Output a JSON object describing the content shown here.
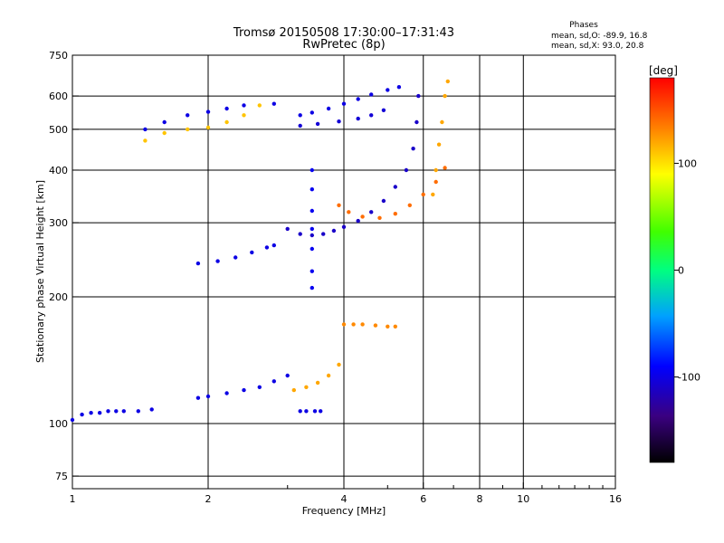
{
  "chart_data": {
    "type": "scatter",
    "title": "Tromsø 20150508 17:30:00–17:31:43",
    "subtitle": "RwPretec (8p)",
    "xlabel": "Frequency [MHz]",
    "ylabel": "Stationary phase Virtual Height [km]",
    "x_scale": "log",
    "y_scale": "log",
    "xlim": [
      1,
      16
    ],
    "ylim": [
      70,
      750
    ],
    "x_ticks": [
      "1",
      "2",
      "4",
      "6",
      "8",
      "10",
      "16"
    ],
    "x_tick_values": [
      1,
      2,
      4,
      6,
      8,
      10,
      16
    ],
    "x_minor_ticks": [
      3,
      5,
      7,
      9,
      11,
      12,
      13,
      14,
      15
    ],
    "y_ticks": [
      "75",
      "100",
      "200",
      "300",
      "400",
      "500",
      "600",
      "750"
    ],
    "y_tick_values": [
      75,
      100,
      200,
      300,
      400,
      500,
      600,
      750
    ],
    "grid": true,
    "phase_stats": {
      "heading": "Phases",
      "line1": "mean, sd,O: -89.9, 16.8",
      "line2": "mean, sd,X:  93.0, 20.8"
    },
    "colorbar": {
      "label": "[deg]",
      "ticks": [
        "100",
        "0",
        "-100"
      ],
      "tick_values": [
        100,
        0,
        -100
      ],
      "range": [
        -180,
        180
      ]
    },
    "traces": [
      {
        "name": "",
        "phase": -100,
        "points": [
          [
            1.0,
            102
          ],
          [
            1.05,
            105
          ],
          [
            1.1,
            106
          ],
          [
            1.15,
            106
          ],
          [
            1.2,
            107
          ],
          [
            1.25,
            107
          ],
          [
            1.3,
            107
          ],
          [
            1.4,
            107
          ],
          [
            1.5,
            108
          ]
        ]
      },
      {
        "name": "",
        "phase": -100,
        "points": [
          [
            1.9,
            115
          ],
          [
            2.0,
            116
          ],
          [
            2.2,
            118
          ],
          [
            2.4,
            120
          ],
          [
            2.6,
            122
          ],
          [
            2.8,
            126
          ],
          [
            3.0,
            130
          ]
        ]
      },
      {
        "name": "",
        "phase": 120,
        "points": [
          [
            3.1,
            120
          ],
          [
            3.3,
            122
          ],
          [
            3.5,
            125
          ],
          [
            3.7,
            130
          ],
          [
            3.9,
            138
          ]
        ]
      },
      {
        "name": "",
        "phase": -100,
        "points": [
          [
            1.9,
            240
          ],
          [
            2.1,
            243
          ],
          [
            2.3,
            248
          ],
          [
            2.5,
            255
          ],
          [
            2.7,
            262
          ],
          [
            2.8,
            265
          ]
        ]
      },
      {
        "name": "",
        "phase": -110,
        "points": [
          [
            3.0,
            290
          ],
          [
            3.2,
            282
          ],
          [
            3.4,
            280
          ],
          [
            3.6,
            282
          ],
          [
            3.8,
            287
          ],
          [
            4.0,
            293
          ],
          [
            4.3,
            303
          ],
          [
            4.6,
            318
          ],
          [
            4.9,
            338
          ],
          [
            5.2,
            365
          ],
          [
            5.5,
            400
          ],
          [
            5.7,
            450
          ],
          [
            5.8,
            520
          ],
          [
            5.85,
            600
          ]
        ]
      },
      {
        "name": "",
        "phase": 140,
        "points": [
          [
            3.9,
            330
          ],
          [
            4.1,
            318
          ],
          [
            4.4,
            310
          ],
          [
            4.8,
            308
          ],
          [
            5.2,
            315
          ],
          [
            5.6,
            330
          ],
          [
            6.0,
            350
          ],
          [
            6.4,
            375
          ],
          [
            6.7,
            405
          ]
        ]
      },
      {
        "name": "",
        "phase": -100,
        "points": [
          [
            3.2,
            540
          ],
          [
            3.4,
            548
          ],
          [
            3.7,
            560
          ],
          [
            4.0,
            575
          ],
          [
            4.3,
            590
          ],
          [
            4.6,
            605
          ],
          [
            5.0,
            620
          ],
          [
            5.3,
            630
          ]
        ]
      },
      {
        "name": "",
        "phase": -105,
        "points": [
          [
            3.2,
            510
          ],
          [
            3.5,
            515
          ],
          [
            3.9,
            522
          ],
          [
            4.3,
            530
          ],
          [
            4.6,
            540
          ],
          [
            4.9,
            555
          ]
        ]
      },
      {
        "name": "",
        "phase": -95,
        "points": [
          [
            3.4,
            210
          ],
          [
            3.4,
            230
          ],
          [
            3.4,
            260
          ],
          [
            3.4,
            290
          ],
          [
            3.4,
            320
          ],
          [
            3.4,
            360
          ],
          [
            3.4,
            400
          ]
        ]
      },
      {
        "name": "",
        "phase": 130,
        "points": [
          [
            4.0,
            172
          ],
          [
            4.2,
            172
          ],
          [
            4.4,
            172
          ],
          [
            4.7,
            171
          ],
          [
            5.0,
            170
          ],
          [
            5.2,
            170
          ]
        ]
      },
      {
        "name": "",
        "phase": 120,
        "points": [
          [
            6.3,
            350
          ],
          [
            6.4,
            400
          ],
          [
            6.5,
            460
          ],
          [
            6.6,
            520
          ],
          [
            6.7,
            600
          ],
          [
            6.8,
            650
          ]
        ]
      },
      {
        "name": "",
        "phase": 110,
        "points": [
          [
            1.45,
            470
          ],
          [
            1.6,
            490
          ],
          [
            1.8,
            500
          ],
          [
            2.0,
            505
          ],
          [
            2.2,
            520
          ],
          [
            2.4,
            540
          ],
          [
            2.6,
            570
          ]
        ]
      },
      {
        "name": "",
        "phase": -100,
        "points": [
          [
            1.45,
            500
          ],
          [
            1.6,
            520
          ],
          [
            1.8,
            540
          ],
          [
            2.0,
            550
          ],
          [
            2.2,
            560
          ],
          [
            2.4,
            570
          ],
          [
            2.8,
            575
          ]
        ]
      },
      {
        "name": "",
        "phase": -100,
        "points": [
          [
            3.2,
            107
          ],
          [
            3.3,
            107
          ],
          [
            3.45,
            107
          ],
          [
            3.55,
            107
          ]
        ]
      }
    ]
  }
}
